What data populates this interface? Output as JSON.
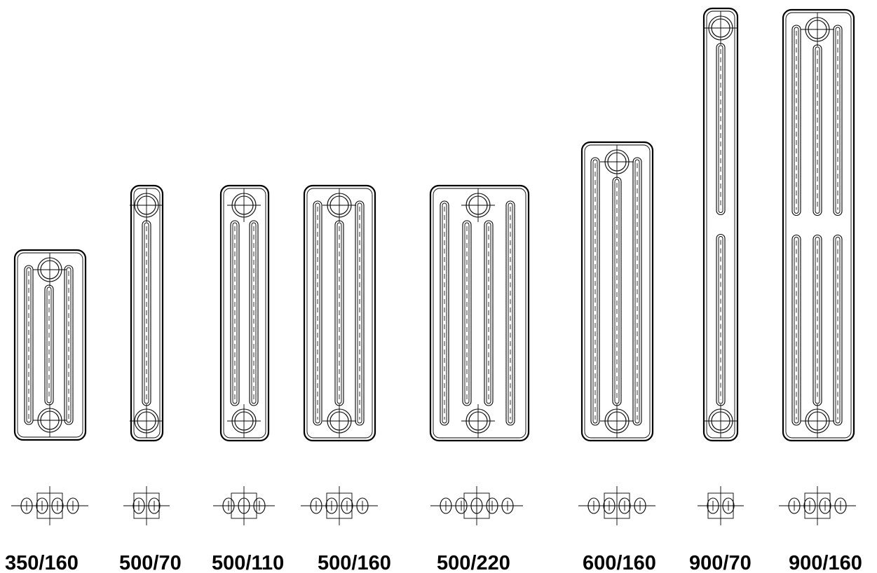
{
  "models": [
    {
      "label": "350/160",
      "columns": 4
    },
    {
      "label": "500/70",
      "columns": 2
    },
    {
      "label": "500/110",
      "columns": 3
    },
    {
      "label": "500/160",
      "columns": 4
    },
    {
      "label": "500/220",
      "columns": 5
    },
    {
      "label": "600/160",
      "columns": 4
    },
    {
      "label": "900/70",
      "columns": 2
    },
    {
      "label": "900/160",
      "columns": 4
    }
  ]
}
